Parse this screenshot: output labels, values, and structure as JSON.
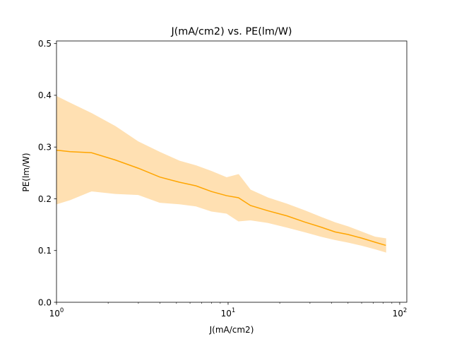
{
  "chart_data": {
    "type": "line",
    "title": "J(mA/cm2) vs. PE(lm/W)",
    "xlabel": "J(mA/cm2)",
    "ylabel": "PE(lm/W)",
    "xscale": "log",
    "xlim": [
      1,
      110
    ],
    "ylim": [
      0,
      0.505
    ],
    "x_tick_values": [
      1,
      10,
      100
    ],
    "x_tick_labels": [
      "10^0",
      "10^1",
      "10^2"
    ],
    "y_ticks": [
      "0.0",
      "0.1",
      "0.2",
      "0.3",
      "0.4",
      "0.5"
    ],
    "grid": false,
    "color": "#ffa500",
    "band_color": "#ffe0b2",
    "series": [
      {
        "x": [
          1.0,
          1.2,
          1.6,
          2.2,
          3.0,
          4.0,
          5.2,
          6.5,
          8.0,
          9.8,
          11.5,
          13.5,
          17,
          22,
          28,
          35,
          42,
          50,
          60,
          72,
          83
        ],
        "values": [
          0.294,
          0.291,
          0.289,
          0.275,
          0.259,
          0.242,
          0.232,
          0.225,
          0.214,
          0.206,
          0.202,
          0.187,
          0.177,
          0.167,
          0.155,
          0.145,
          0.136,
          0.131,
          0.124,
          0.116,
          0.11
        ],
        "upper": [
          0.398,
          0.385,
          0.365,
          0.34,
          0.31,
          0.29,
          0.273,
          0.264,
          0.253,
          0.241,
          0.247,
          0.217,
          0.202,
          0.19,
          0.177,
          0.164,
          0.154,
          0.146,
          0.136,
          0.126,
          0.123
        ],
        "lower": [
          0.19,
          0.198,
          0.215,
          0.21,
          0.208,
          0.193,
          0.19,
          0.186,
          0.176,
          0.172,
          0.157,
          0.159,
          0.154,
          0.145,
          0.136,
          0.127,
          0.121,
          0.116,
          0.11,
          0.103,
          0.097
        ]
      }
    ]
  }
}
